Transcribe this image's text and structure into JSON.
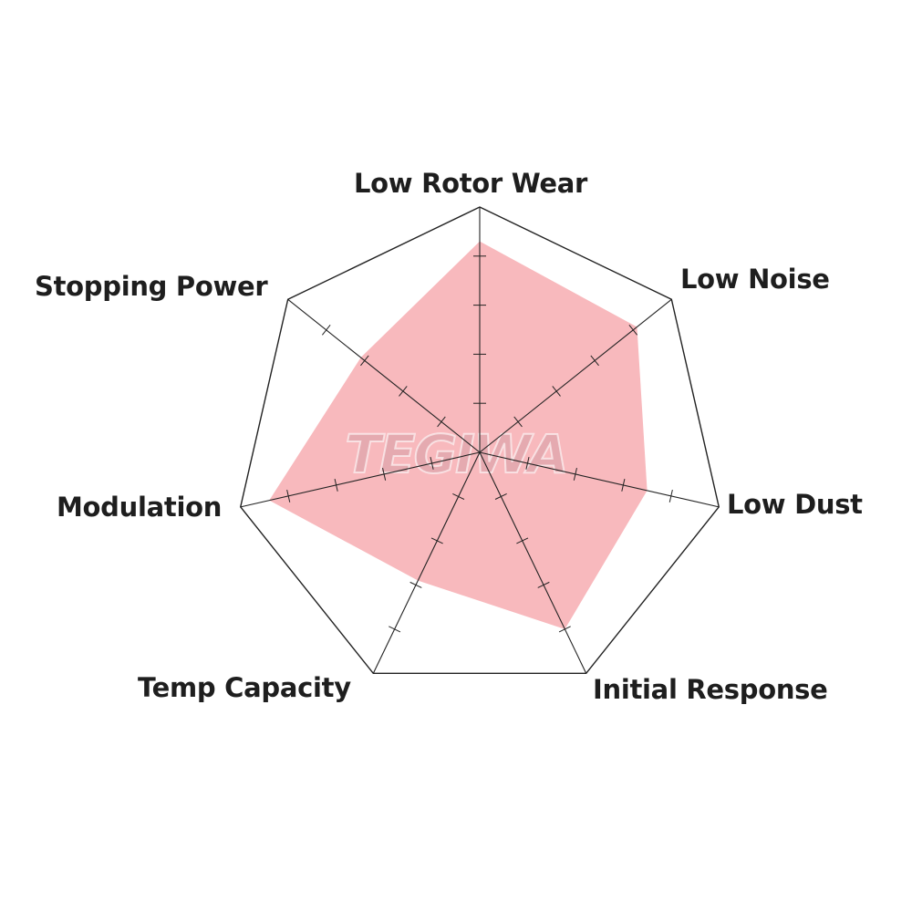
{
  "chart_data": {
    "type": "radar",
    "axes": [
      "Low Rotor Wear",
      "Low Noise",
      "Low Dust",
      "Initial Response",
      "Temp Capacity",
      "Modulation",
      "Stopping Power"
    ],
    "values": [
      4.3,
      4.1,
      3.5,
      4.0,
      2.9,
      4.4,
      3.1
    ],
    "range": [
      0,
      5
    ],
    "ticks": [
      1,
      2,
      3,
      4
    ],
    "fill_color": "#f8b9bd",
    "line_color": "#222222",
    "watermark": "TEGIWA"
  }
}
